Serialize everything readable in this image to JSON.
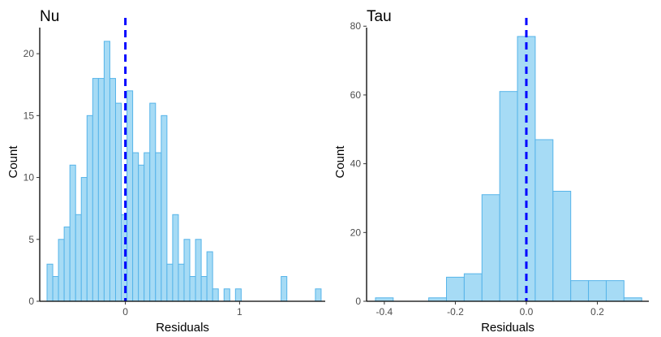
{
  "chart_data": [
    {
      "type": "bar",
      "title": "Nu",
      "xlabel": "Residuals",
      "ylabel": "Count",
      "xlim": [
        -0.75,
        1.75
      ],
      "ylim": [
        0,
        22.5
      ],
      "xticks": [
        0,
        1
      ],
      "xtick_labels": [
        "0",
        "1"
      ],
      "yticks": [
        0,
        5,
        10,
        15,
        20
      ],
      "ytick_labels": [
        "0",
        "5",
        "10",
        "15",
        "20"
      ],
      "bin_start": -0.686,
      "bin_width": 0.05,
      "values": [
        3,
        2,
        5,
        6,
        11,
        7,
        10,
        15,
        18,
        18,
        21,
        18,
        16,
        7,
        17,
        12,
        11,
        12,
        16,
        12,
        15,
        3,
        7,
        3,
        5,
        2,
        5,
        2,
        4,
        1,
        0,
        1,
        0,
        1,
        0,
        0,
        0,
        0,
        0,
        0,
        0,
        2,
        0,
        0,
        0,
        0,
        0,
        1
      ],
      "vline": 0,
      "fill": "#a6dbf5",
      "edge": "#56b4e9",
      "vline_color": "#0000ff",
      "grid": false,
      "legend": "none"
    },
    {
      "type": "bar",
      "title": "Tau",
      "xlabel": "Residuals",
      "ylabel": "Count",
      "xlim": [
        -0.45,
        0.345
      ],
      "ylim": [
        0,
        81
      ],
      "xticks": [
        -0.4,
        -0.2,
        0,
        0.2
      ],
      "xtick_labels": [
        "-0.4",
        "-0.2",
        "0.0",
        "0.2"
      ],
      "yticks": [
        0,
        20,
        40,
        60,
        80
      ],
      "ytick_labels": [
        "0",
        "20",
        "40",
        "60",
        "80"
      ],
      "bin_start": -0.425,
      "bin_width": 0.05,
      "values": [
        1,
        0,
        0,
        1,
        7,
        8,
        31,
        61,
        77,
        47,
        32,
        6,
        6,
        6,
        1
      ],
      "vline": 0,
      "fill": "#a6dbf5",
      "edge": "#56b4e9",
      "vline_color": "#0000ff",
      "grid": false,
      "legend": "none"
    }
  ]
}
